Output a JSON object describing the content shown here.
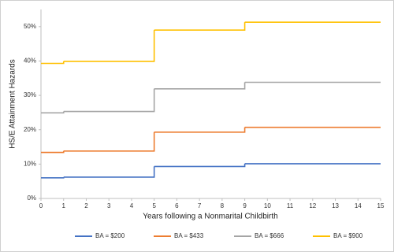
{
  "chart_data": {
    "type": "step",
    "x_label": "Years following a Nonmarital Childbirth",
    "y_label": "HS/E Attainment Hazards",
    "x": [
      0,
      1,
      5,
      9
    ],
    "series": [
      {
        "name": "BA = $200",
        "color": "#4472c4",
        "values": [
          6.0,
          6.2,
          9.3,
          10.1
        ]
      },
      {
        "name": "BA = $433",
        "color": "#ed7d31",
        "values": [
          13.4,
          13.8,
          19.3,
          20.7
        ]
      },
      {
        "name": "BA = $666",
        "color": "#a5a5a5",
        "values": [
          24.9,
          25.3,
          31.9,
          33.8
        ]
      },
      {
        "name": "BA = $900",
        "color": "#ffc000",
        "values": [
          39.3,
          39.9,
          49.0,
          51.3
        ]
      }
    ],
    "xlim": [
      0,
      15
    ],
    "xticks": [
      0,
      1,
      2,
      3,
      4,
      5,
      6,
      7,
      8,
      9,
      10,
      11,
      12,
      13,
      14,
      15
    ],
    "ylim": [
      0,
      55
    ],
    "yticks": [
      {
        "value": 0,
        "label": "0%"
      },
      {
        "value": 10,
        "label": "10%"
      },
      {
        "value": 20,
        "label": "20%"
      },
      {
        "value": 30,
        "label": "30%"
      },
      {
        "value": 40,
        "label": "40%"
      },
      {
        "value": 50,
        "label": "50%"
      }
    ],
    "grid": false,
    "legend": "bottom"
  }
}
